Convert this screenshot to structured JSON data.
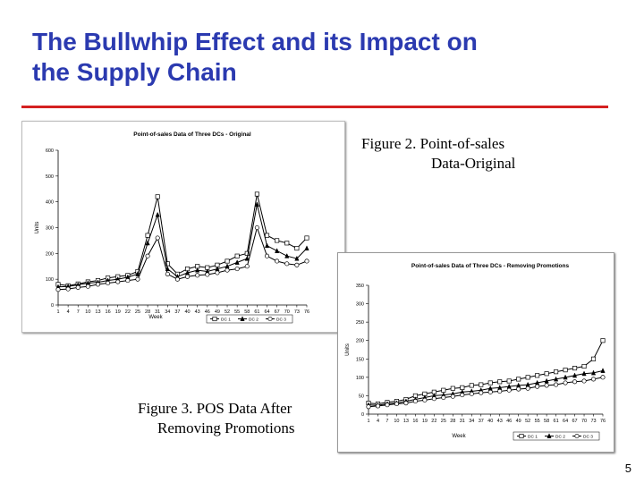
{
  "slide": {
    "title_line1": "The Bullwhip Effect and its Impact on",
    "title_line2": "the Supply Chain",
    "title_color": "#2b3ab0",
    "rule_color": "#d42020",
    "caption_fig2_line1": "Figure 2. Point-of-sales",
    "caption_fig2_line2": "Data-Original",
    "caption_fig3_line1": "Figure 3. POS Data After",
    "caption_fig3_line2": "Removing Promotions",
    "page_number": "5"
  },
  "chart_data": [
    {
      "type": "line",
      "title": "Point-of-sales Data of Three DCs - Original",
      "xlabel": "Week",
      "ylabel": "Units",
      "ylim": [
        0,
        600
      ],
      "yticks": [
        0,
        100,
        200,
        300,
        400,
        500,
        600
      ],
      "xticks": [
        1,
        4,
        7,
        10,
        13,
        16,
        19,
        22,
        25,
        28,
        31,
        34,
        37,
        40,
        43,
        46,
        49,
        52,
        55,
        58,
        61,
        64,
        67,
        70,
        73,
        76
      ],
      "x": [
        1,
        4,
        7,
        10,
        13,
        16,
        19,
        22,
        25,
        28,
        31,
        34,
        37,
        40,
        43,
        46,
        49,
        52,
        55,
        58,
        61,
        64,
        67,
        70,
        73,
        76
      ],
      "grid": false,
      "legend_position": "bottom-right",
      "series": [
        {
          "name": "DC 1",
          "color": "#000000",
          "marker": "square",
          "values": [
            80,
            75,
            82,
            90,
            95,
            105,
            110,
            115,
            130,
            270,
            420,
            160,
            120,
            140,
            150,
            145,
            155,
            170,
            190,
            200,
            430,
            270,
            250,
            240,
            220,
            260
          ]
        },
        {
          "name": "DC 2",
          "color": "#000000",
          "marker": "triangle",
          "values": [
            70,
            72,
            78,
            85,
            88,
            95,
            100,
            108,
            120,
            240,
            350,
            140,
            110,
            125,
            135,
            130,
            140,
            150,
            165,
            180,
            390,
            230,
            210,
            190,
            180,
            220
          ]
        },
        {
          "name": "DC 3",
          "color": "#000000",
          "marker": "circle",
          "values": [
            60,
            62,
            68,
            72,
            80,
            85,
            90,
            95,
            100,
            190,
            260,
            120,
            100,
            110,
            115,
            118,
            125,
            135,
            140,
            150,
            300,
            190,
            170,
            160,
            155,
            170
          ]
        }
      ]
    },
    {
      "type": "line",
      "title": "Point-of-sales Data of Three DCs - Removing Promotions",
      "xlabel": "Week",
      "ylabel": "Units",
      "ylim": [
        0,
        350
      ],
      "yticks": [
        0,
        50,
        100,
        150,
        200,
        250,
        300,
        350
      ],
      "xticks": [
        1,
        4,
        7,
        10,
        13,
        16,
        19,
        22,
        25,
        28,
        31,
        34,
        37,
        40,
        43,
        46,
        49,
        52,
        55,
        58,
        61,
        64,
        67,
        70,
        73,
        76
      ],
      "x": [
        1,
        4,
        7,
        10,
        13,
        16,
        19,
        22,
        25,
        28,
        31,
        34,
        37,
        40,
        43,
        46,
        49,
        52,
        55,
        58,
        61,
        64,
        67,
        70,
        73,
        76
      ],
      "grid": false,
      "legend_position": "bottom-right",
      "series": [
        {
          "name": "DC 1",
          "color": "#000000",
          "marker": "square",
          "values": [
            30,
            28,
            32,
            35,
            40,
            50,
            55,
            60,
            65,
            70,
            72,
            78,
            80,
            85,
            88,
            90,
            95,
            100,
            105,
            110,
            115,
            120,
            125,
            130,
            150,
            200
          ]
        },
        {
          "name": "DC 2",
          "color": "#000000",
          "marker": "triangle",
          "values": [
            25,
            24,
            28,
            30,
            35,
            40,
            45,
            50,
            52,
            55,
            60,
            62,
            65,
            70,
            72,
            75,
            78,
            80,
            85,
            90,
            95,
            100,
            105,
            110,
            112,
            118
          ]
        },
        {
          "name": "DC 3",
          "color": "#000000",
          "marker": "circle",
          "values": [
            20,
            22,
            25,
            28,
            30,
            35,
            38,
            42,
            45,
            48,
            52,
            55,
            58,
            60,
            62,
            65,
            68,
            70,
            75,
            78,
            80,
            85,
            88,
            90,
            95,
            100
          ]
        }
      ]
    }
  ]
}
